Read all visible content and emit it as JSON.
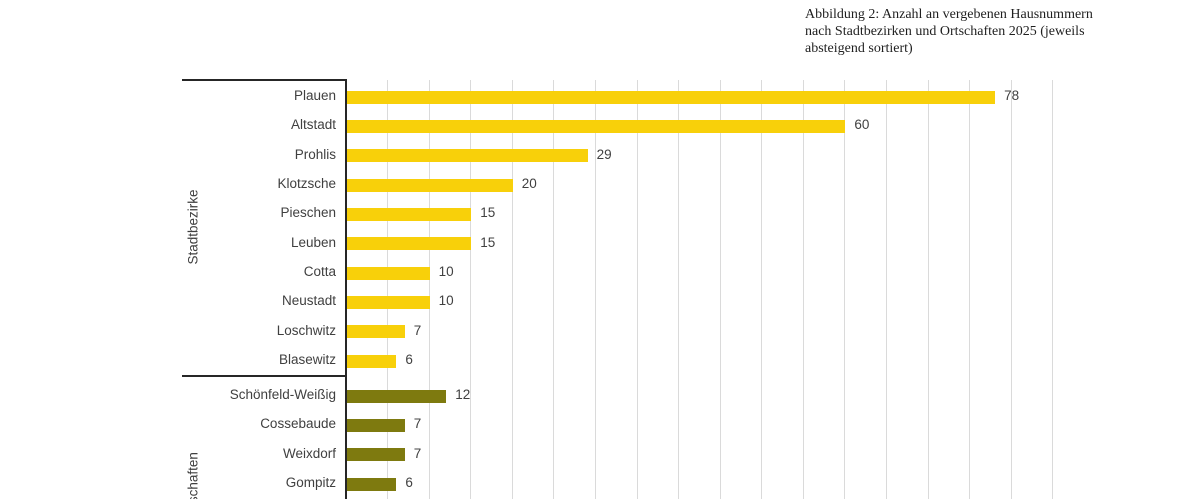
{
  "caption": {
    "lines": [
      "Abbildung 2: Anzahl an vergebenen Hausnummern",
      "nach Stadtbezirken und Ortschaften 2025 (jeweils",
      "absteigend sortiert)"
    ]
  },
  "chart_data": {
    "type": "bar",
    "orientation": "horizontal",
    "title": "Anzahl an vergebenen Hausnummern nach Stadtbezirken und Ortschaften 2025 (jeweils absteigend sortiert)",
    "xlabel": "",
    "ylabel": "",
    "xlim": [
      0,
      85
    ],
    "grid": true,
    "grid_interval": 5,
    "legend_position": "none",
    "value_labels": true,
    "groups": [
      {
        "label": "Stadtbezirke",
        "color": "#F8D00A",
        "items": [
          {
            "label": "Plauen",
            "value": 78
          },
          {
            "label": "Altstadt",
            "value": 60
          },
          {
            "label": "Prohlis",
            "value": 29
          },
          {
            "label": "Klotzsche",
            "value": 20
          },
          {
            "label": "Pieschen",
            "value": 15
          },
          {
            "label": "Leuben",
            "value": 15
          },
          {
            "label": "Cotta",
            "value": 10
          },
          {
            "label": "Neustadt",
            "value": 10
          },
          {
            "label": "Loschwitz",
            "value": 7
          },
          {
            "label": "Blasewitz",
            "value": 6
          }
        ]
      },
      {
        "label": "Ortschaften",
        "color": "#7E7A0F",
        "items": [
          {
            "label": "Schönfeld-Weißig",
            "value": 12
          },
          {
            "label": "Cossebaude",
            "value": 7
          },
          {
            "label": "Weixdorf",
            "value": 7
          },
          {
            "label": "Gompitz",
            "value": 6
          }
        ]
      }
    ],
    "colors": {
      "gridline": "#DADADA",
      "axis": "#262626",
      "label_text": "#404040",
      "value_text": "#404040"
    }
  }
}
